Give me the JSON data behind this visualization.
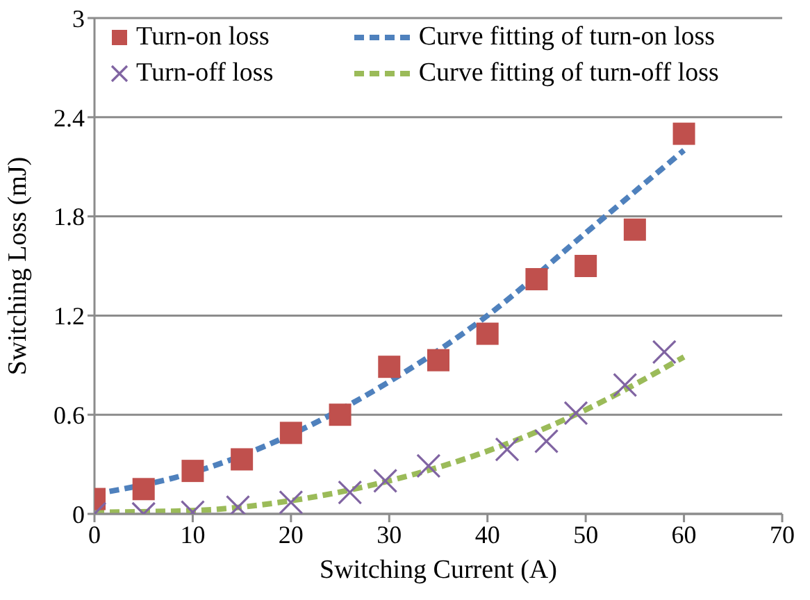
{
  "chart_data": {
    "type": "scatter",
    "xlabel": "Switching Current (A)",
    "ylabel": "Switching Loss (mJ)",
    "xlim": [
      0,
      70
    ],
    "xticks": [
      0,
      10,
      20,
      30,
      40,
      50,
      60,
      70
    ],
    "ylim": [
      0,
      3
    ],
    "yticks": [
      0,
      0.6,
      1.2,
      1.8,
      2.4,
      3
    ],
    "grid": "y",
    "legend": "top",
    "series": [
      {
        "name": "Turn-on loss",
        "marker": "square",
        "color": "#c0504d",
        "x": [
          0,
          5,
          10,
          15,
          20,
          25,
          30,
          35,
          40,
          45,
          50,
          55,
          60
        ],
        "values": [
          0.09,
          0.15,
          0.26,
          0.33,
          0.49,
          0.6,
          0.89,
          0.93,
          1.09,
          1.42,
          1.5,
          1.72,
          2.3
        ]
      },
      {
        "name": "Curve fitting of turn-on loss",
        "type": "line",
        "line_style": "dashed",
        "color": "#4f81bd",
        "x": [
          0,
          10,
          20,
          30,
          40,
          50,
          60
        ],
        "values": [
          0.12,
          0.25,
          0.48,
          0.8,
          1.2,
          1.7,
          2.2
        ]
      },
      {
        "name": "Turn-off loss",
        "marker": "cross",
        "color": "#8064a2",
        "x": [
          0,
          5,
          10,
          14.6,
          20,
          26,
          29.6,
          34,
          42,
          46,
          49,
          54,
          58
        ],
        "values": [
          0,
          0,
          0.01,
          0.04,
          0.07,
          0.13,
          0.2,
          0.29,
          0.39,
          0.44,
          0.61,
          0.78,
          0.98
        ]
      },
      {
        "name": "Curve fitting of turn-off loss",
        "type": "line",
        "line_style": "dashed",
        "color": "#9bbb59",
        "x": [
          0,
          10,
          20,
          30,
          40,
          50,
          60
        ],
        "values": [
          0.01,
          0.02,
          0.08,
          0.2,
          0.38,
          0.63,
          0.95
        ]
      }
    ]
  }
}
